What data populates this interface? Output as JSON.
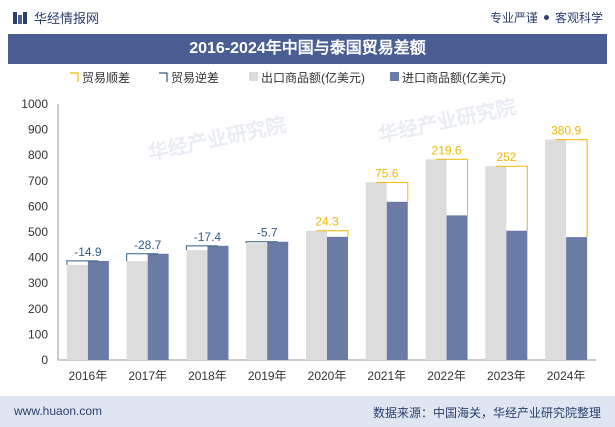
{
  "header": {
    "brand_name": "华经情报网",
    "tagline_left": "专业严谨",
    "tagline_right": "客观科学"
  },
  "title": "2016-2024年中国与泰国贸易差额",
  "footer": {
    "website": "www.huaon.com",
    "source": "数据来源：中国海关，华经产业研究院整理"
  },
  "watermark": "华经产业研究院",
  "colors": {
    "export": "#dcdcdc",
    "import": "#6a7ca6",
    "surplus": "#f0b800",
    "deficit": "#2f5d86",
    "title_bg": "#4a5e93"
  },
  "chart_data": {
    "type": "bar",
    "categories": [
      "2016年",
      "2017年",
      "2018年",
      "2019年",
      "2020年",
      "2021年",
      "2022年",
      "2023年",
      "2024年"
    ],
    "legend": [
      "贸易顺差",
      "贸易逆差",
      "出口商品额(亿美元)",
      "进口商品额(亿美元)"
    ],
    "series": [
      {
        "name": "出口商品额(亿美元)",
        "values": [
          372,
          386,
          429,
          456,
          505,
          694,
          784,
          757,
          861
        ]
      },
      {
        "name": "进口商品额(亿美元)",
        "values": [
          387,
          415,
          446,
          462,
          481,
          618,
          565,
          505,
          480
        ]
      }
    ],
    "balance": [
      -14.9,
      -28.7,
      -17.4,
      -5.7,
      24.3,
      75.6,
      219.6,
      252,
      380.9
    ],
    "balance_labels": [
      "-14.9",
      "-28.7",
      "-17.4",
      "-5.7",
      "24.3",
      "75.6",
      "219.6",
      "252",
      "380.9"
    ],
    "ylim": [
      0,
      1000
    ],
    "yticks": [
      "0",
      "100",
      "200",
      "300",
      "400",
      "500",
      "600",
      "700",
      "800",
      "900",
      "1000"
    ],
    "legend_position": "top"
  }
}
